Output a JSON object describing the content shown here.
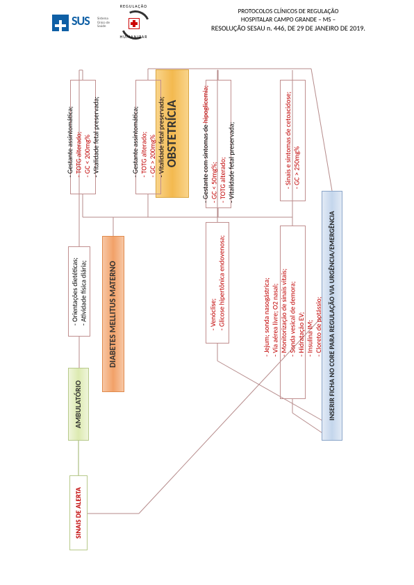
{
  "header": {
    "sus_text": "SUS",
    "sus_sub": "Sistema\nÚnico\nde Saúde",
    "reg_top": "REGULAÇÃO",
    "reg_bottom": "HUMANIZAR",
    "line1": "PROTOCOLOS CLÍNICOS DE REGULAÇÃO",
    "line2": "HOSPITALAR CAMPO GRANDE – MS –",
    "line3": "RESOLUÇÃO SESAU n. 446, DE 29 DE JANEIRO DE 2019."
  },
  "flow": {
    "title": "OBSTETRÍCIA",
    "diabetes": "DIABETES MELLITUS MATERNO",
    "row1": {
      "b1": "- Gestante assintomática;\n- TOTG alterado;\n- GC < 200mg%\n- Vitalidade fetal preservada;",
      "b2": "- Gestante assintomática;\n- TOTG alterado;\n- GC > 200mg%\n- Vitalidade fetal preservada;",
      "b3": "- Gestante com sintomas de hipoglicemia;\n- GC < 50mg%;\n- TOTG alterado;\n- Vitalidade fetal preservada;",
      "b4": "- Sinais e sintomas de cetoacidose;\n- GC > 250mg%"
    },
    "row2": {
      "b1": "- Orientações dietéticas;\n- Atividade física diária;",
      "b2": "- Venóclise;\n- Glicose hipertônica endovenosa;",
      "b3": "- Jejum; sonda nasogástrica;\n- Via aérea livre; O2 nasal;\n- Monitorização de sinais vitais;\n- Sonda vesical de demora;\n- Hidratação EV;\n- Insulina IM;\n- Cloreto de potássio;"
    },
    "ambulatorio": "AMBULATÓRIO",
    "sinais": "SINAIS DE ALERTA",
    "inserir": "INSERIR FICHA NO CORE PARA REGULAÇÃO VIA URGÊNCIA/EMERGÊNCIA",
    "red_terms": [
      "TOTG alterado;",
      "GC < 200mg%",
      "GC > 200mg%",
      "hipoglicemia;",
      "GC < 50mg%;",
      "TOTG alterado;",
      "Sinais e sintomas de cetoacidose;",
      "GC > 250mg%",
      "Venóclise;",
      "Glicose hipertônica endovenosa;",
      "Jejum; sonda nasogástrica;",
      "Via aérea livre; O2 nasal;",
      "Monitorização de sinais vitais;",
      "Sonda vesical de demora;",
      "Hidratação EV;",
      "Insulina IM;",
      "Cloreto de potássio;",
      "SINAIS DE ALERTA"
    ],
    "colors": {
      "title_bg": "#f3b94f",
      "diabetes_bg": "#f2a168",
      "amb_bg": "#dceab0",
      "inserir_bg": "#c4d6ec",
      "box_border": "#c08e8e",
      "green_border": "#b7c98a",
      "blue_border": "#8aa5c9",
      "red_text": "#c00000",
      "connector": "#b58a8a",
      "connector_green": "#9bb06a"
    },
    "fontsize": {
      "title": 18,
      "header": 12,
      "body": 10
    }
  }
}
